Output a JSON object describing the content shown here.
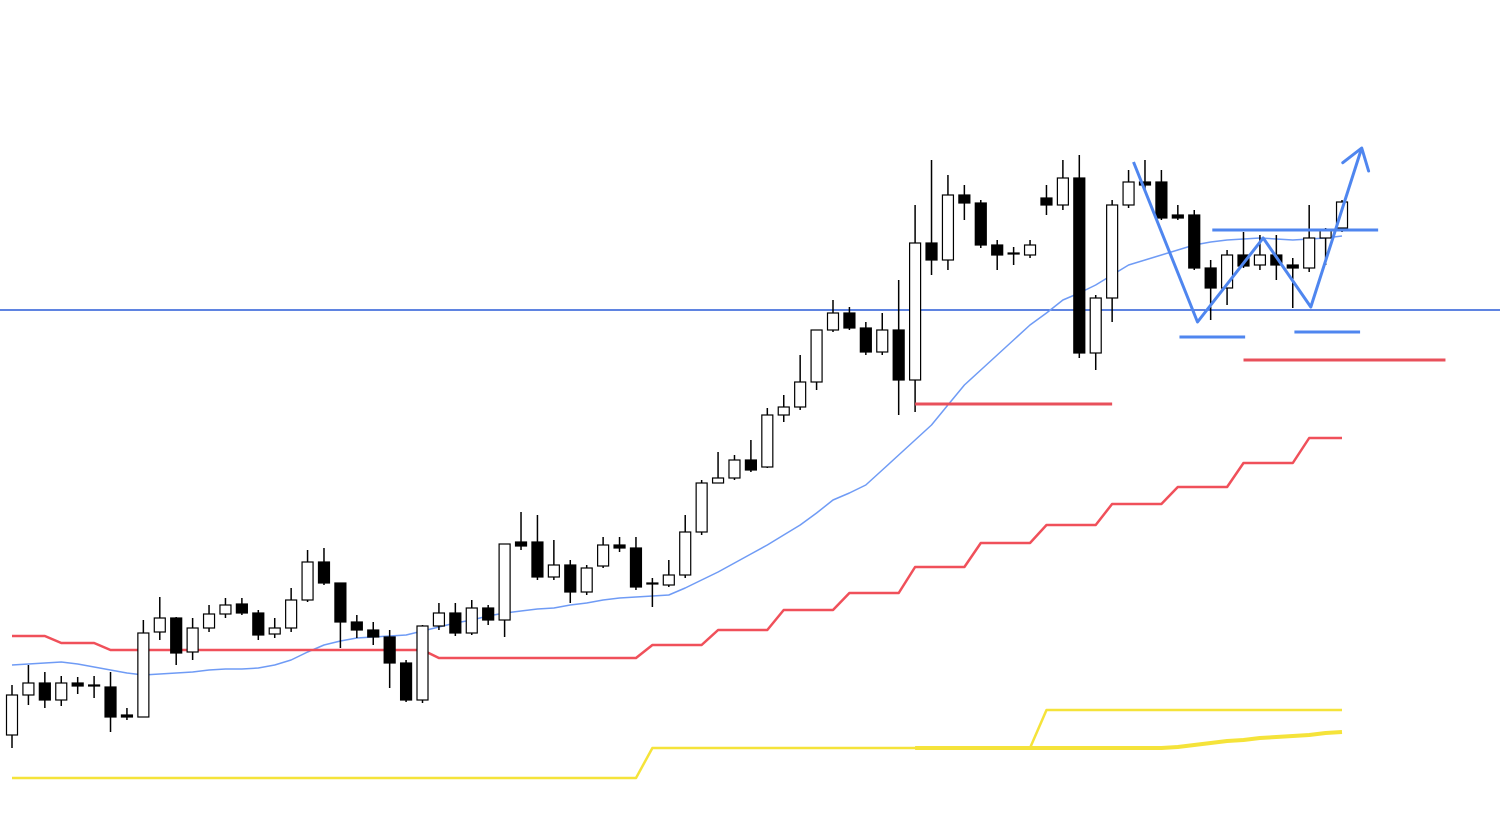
{
  "chart_data": {
    "type": "candlestick",
    "ylim": [
      0,
      815
    ],
    "open": [
      80,
      120,
      132,
      115,
      132,
      129,
      128,
      100,
      98,
      183,
      197,
      163,
      187,
      201,
      211,
      202,
      181,
      187,
      215,
      253,
      232,
      193,
      185,
      178,
      152,
      115,
      189,
      202,
      182,
      207,
      195,
      273,
      273,
      238,
      250,
      223,
      249,
      270,
      267,
      232,
      230,
      240,
      283,
      332,
      337,
      355,
      348,
      400,
      408,
      433,
      485,
      502,
      487,
      463,
      485,
      435,
      572,
      555,
      620,
      612,
      570,
      562,
      560,
      617,
      610,
      637,
      462,
      517,
      610,
      633,
      633,
      600,
      600,
      547,
      527,
      560,
      550,
      560,
      550,
      547,
      577,
      587
    ],
    "high": [
      130,
      150,
      143,
      139,
      138,
      139,
      143,
      107,
      195,
      218,
      198,
      197,
      210,
      217,
      217,
      205,
      197,
      227,
      265,
      267,
      232,
      200,
      193,
      185,
      155,
      190,
      212,
      212,
      215,
      210,
      271,
      303,
      300,
      275,
      255,
      250,
      278,
      278,
      278,
      237,
      255,
      300,
      335,
      363,
      360,
      375,
      407,
      420,
      460,
      485,
      515,
      508,
      493,
      502,
      535,
      610,
      655,
      640,
      630,
      615,
      575,
      568,
      575,
      630,
      655,
      660,
      520,
      615,
      645,
      655,
      645,
      610,
      605,
      555,
      565,
      583,
      580,
      580,
      557,
      610,
      587,
      615
    ],
    "low": [
      67,
      110,
      107,
      109,
      121,
      117,
      83,
      95,
      98,
      175,
      150,
      155,
      183,
      197,
      200,
      175,
      177,
      183,
      213,
      230,
      167,
      177,
      170,
      127,
      113,
      112,
      185,
      179,
      180,
      190,
      178,
      265,
      235,
      235,
      212,
      220,
      247,
      263,
      225,
      208,
      228,
      237,
      280,
      332,
      335,
      343,
      347,
      393,
      405,
      425,
      483,
      485,
      460,
      460,
      400,
      403,
      540,
      545,
      595,
      567,
      545,
      550,
      557,
      600,
      605,
      457,
      445,
      493,
      607,
      625,
      595,
      595,
      545,
      495,
      510,
      547,
      545,
      535,
      507,
      543,
      550,
      583
    ],
    "close": [
      120,
      132,
      115,
      132,
      129,
      130,
      98,
      98,
      182,
      197,
      162,
      187,
      201,
      210,
      202,
      180,
      187,
      215,
      253,
      232,
      193,
      185,
      178,
      152,
      115,
      189,
      202,
      182,
      207,
      195,
      271,
      269,
      238,
      250,
      223,
      247,
      270,
      267,
      228,
      231,
      240,
      283,
      332,
      337,
      355,
      345,
      400,
      408,
      433,
      485,
      502,
      487,
      463,
      485,
      435,
      572,
      555,
      620,
      612,
      570,
      560,
      561,
      570,
      610,
      637,
      462,
      517,
      610,
      633,
      630,
      597,
      597,
      547,
      527,
      560,
      549,
      560,
      550,
      547,
      577,
      585,
      613
    ],
    "series": [
      {
        "color": "#6f9bf5",
        "values": [
          150,
          151,
          152,
          153,
          151,
          148,
          145,
          142,
          140,
          141,
          142,
          143,
          145,
          146,
          146,
          147,
          150,
          155,
          163,
          170,
          174,
          177,
          178,
          179,
          180,
          184,
          188,
          192,
          195,
          199,
          202,
          204,
          206,
          207,
          210,
          212,
          215,
          217,
          218,
          219,
          220,
          227,
          235,
          243,
          252,
          261,
          270,
          280,
          290,
          302,
          315,
          322,
          330,
          345,
          360,
          375,
          390,
          410,
          430,
          445,
          460,
          475,
          490,
          502,
          515,
          522,
          530,
          540,
          550,
          555,
          560,
          565,
          570,
          573,
          575,
          576,
          577,
          576,
          575,
          576,
          577,
          579
        ]
      },
      {
        "color": "#f0505a",
        "values": [
          179,
          179,
          179,
          172,
          172,
          172,
          165,
          165,
          165,
          165,
          165,
          165,
          165,
          165,
          165,
          165,
          165,
          165,
          165,
          165,
          165,
          165,
          165,
          165,
          165,
          165,
          157,
          157,
          157,
          157,
          157,
          157,
          157,
          157,
          157,
          157,
          157,
          157,
          157,
          170,
          170,
          170,
          170,
          185,
          185,
          185,
          185,
          205,
          205,
          205,
          205,
          222,
          222,
          222,
          222,
          248,
          248,
          248,
          248,
          272,
          272,
          272,
          272,
          290,
          290,
          290,
          290,
          311,
          311,
          311,
          311,
          328,
          328,
          328,
          328,
          352,
          352,
          352,
          352,
          377,
          377,
          377
        ]
      },
      {
        "color": "#f5e33a",
        "values": [
          37,
          37,
          37,
          37,
          37,
          37,
          37,
          37,
          37,
          37,
          37,
          37,
          37,
          37,
          37,
          37,
          37,
          37,
          37,
          37,
          37,
          37,
          37,
          37,
          37,
          37,
          37,
          37,
          37,
          37,
          37,
          37,
          37,
          37,
          37,
          37,
          37,
          37,
          37,
          67,
          67,
          67,
          67,
          67,
          67,
          67,
          67,
          67,
          67,
          67,
          67,
          67,
          67,
          67,
          67,
          67,
          67,
          67,
          67,
          67,
          67,
          67,
          67,
          105,
          105,
          105,
          105,
          105,
          105,
          105,
          105,
          105,
          105,
          105,
          105,
          105,
          105,
          105,
          105,
          105,
          105,
          105
        ]
      },
      {
        "color": "#f5e33a",
        "values": [
          null,
          null,
          null,
          null,
          null,
          null,
          null,
          null,
          null,
          null,
          null,
          null,
          null,
          null,
          null,
          null,
          null,
          null,
          null,
          null,
          null,
          null,
          null,
          null,
          null,
          null,
          null,
          null,
          null,
          null,
          null,
          null,
          null,
          null,
          null,
          null,
          null,
          null,
          null,
          null,
          null,
          null,
          null,
          null,
          null,
          null,
          null,
          null,
          null,
          null,
          null,
          null,
          null,
          null,
          null,
          67,
          67,
          67,
          67,
          67,
          67,
          67,
          67,
          67,
          67,
          67,
          67,
          67,
          67,
          67,
          67,
          68,
          70,
          72,
          74,
          75,
          77,
          78,
          79,
          80,
          82,
          83
        ]
      }
    ],
    "levels": [
      {
        "value": 505,
        "color": "#2a5bd7"
      }
    ],
    "segments": [
      {
        "value": 411,
        "from": 55,
        "to": 67,
        "color": "#e8505b"
      },
      {
        "value": 455,
        "from": 75,
        "to": 87.3,
        "color": "#e8505b"
      },
      {
        "value": 585,
        "from": 73.1,
        "to": 83.2,
        "color": "#4f86ef"
      },
      {
        "value": 478,
        "from": 71.1,
        "to": 75.1,
        "color": "#4f86ef"
      },
      {
        "value": 483,
        "from": 78.1,
        "to": 82.1,
        "color": "#4f86ef"
      }
    ],
    "pattern": {
      "x": [
        68.3,
        72.2,
        76.2,
        79.1,
        82.2
      ],
      "values": [
        653,
        493,
        577,
        508,
        667
      ],
      "color": "#4f86ef"
    }
  }
}
